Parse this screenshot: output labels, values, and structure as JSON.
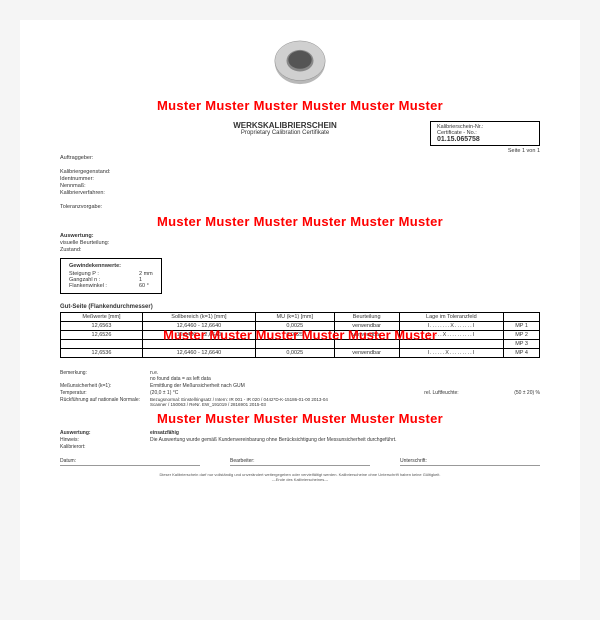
{
  "watermark": "Muster Muster Muster Muster Muster Muster",
  "watermark2": "Muster Muster  Muster Muster Muster Muster",
  "header": {
    "title": "WERKSKALIBRIERSCHEIN",
    "subtitle": "Proprietary Calibration Certifikate",
    "cert_label": "Kalibrierschein-Nr.:",
    "cert_label2": "Certificate - No.:",
    "cert_no": "01.15.065758",
    "page": "Seite 1 von 1"
  },
  "fields": {
    "auftraggeber": "Auftraggeber:",
    "kalibriergegenstand": "Kalibriergegenstand:",
    "identnummer": "Identnummer:",
    "nennmass": "Nennmaß:",
    "kalibrierverfahren": "Kalibrierverfahren:",
    "toleranzvorgabe": "Toleranzvorgabe:",
    "auswertung": "Auswertung:",
    "visuelle": "visuelle Beurteilung:",
    "zustand": "Zustand:"
  },
  "thread": {
    "title": "Gewindekennwerte:",
    "rows": [
      {
        "label": "Steigung P :",
        "val": "2 mm"
      },
      {
        "label": "Gangzahl n :",
        "val": "1"
      },
      {
        "label": "Flankenwinkel :",
        "val": "60 °"
      }
    ]
  },
  "gut_label": "Gut-Seite (Flankendurchmesser)",
  "table": {
    "headers": [
      "Meßwerte [mm]",
      "Sollbereich (k=1) [mm]",
      "MU (k=1) [mm]",
      "Beurteilung",
      "Lage im Toleranzfeld",
      ""
    ],
    "rows": [
      [
        "12,6563",
        "12,6460 - 12,6640",
        "0,0025",
        "verwendbar",
        "I........X.......I",
        "MP 1"
      ],
      [
        "12,6526",
        "12,6460 - 12,6640",
        "0,0025",
        "verwendbar",
        "I.....X..........I",
        "MP 2"
      ],
      [
        "",
        "",
        "",
        "",
        "",
        "MP 3"
      ],
      [
        "12,6536",
        "12,6460 - 12,6640",
        "0,0025",
        "verwendbar",
        "I......X.........I",
        "MP 4"
      ]
    ]
  },
  "footer": {
    "bemerkung_l": "Bemerkung:",
    "bemerkung_v": "n.e.\nno found data = as left data",
    "messun_l": "Meßunsicherheit (k=1):",
    "messun_v": "Ermittlung der Meßunsicherheit nach GUM",
    "temp_l": "Temperatur:",
    "temp_v": "(20,0 ± 1) °C",
    "luft_l": "rel. Luftfeuchte:",
    "luft_v": "(50 ± 20) %",
    "ruck_l": "Rückführung auf nationale Normale:",
    "ruck_v": "Bezugsnormal: Einstellringsatz / Intern: IR 001 - IR 020 / 0442*D-K-15186-01-00 2013-04\nScanner / 150063 / ReNr. EW_191019 / 2816901 2015-03",
    "ausw_l": "Auswertung:",
    "ausw_v": "einsatzfähig",
    "hinweis_l": "Hinweis:",
    "hinweis_v": "Die Auswertung wurde gemäß Kundenvereinbarung ohne Berücksichtigung der Messunsicherheit durchgeführt.",
    "kalib_l": "Kalibrierort:",
    "datum_l": "Datum:",
    "bearb_l": "Bearbeiter:",
    "unter_l": "Unterschrift:",
    "fine": "Dieser Kalibrierschein darf nur vollständig und unverändert weitergegeben oder vervielfältigt werden. Kalibrierscheine ohne Unterschrift haben keine Gültigkeit.\n---Ende des Kalibrierscheines---"
  },
  "colors": {
    "red": "#ff0000",
    "black": "#000000",
    "page_bg": "#ffffff",
    "body_bg": "#f5f5f5"
  }
}
